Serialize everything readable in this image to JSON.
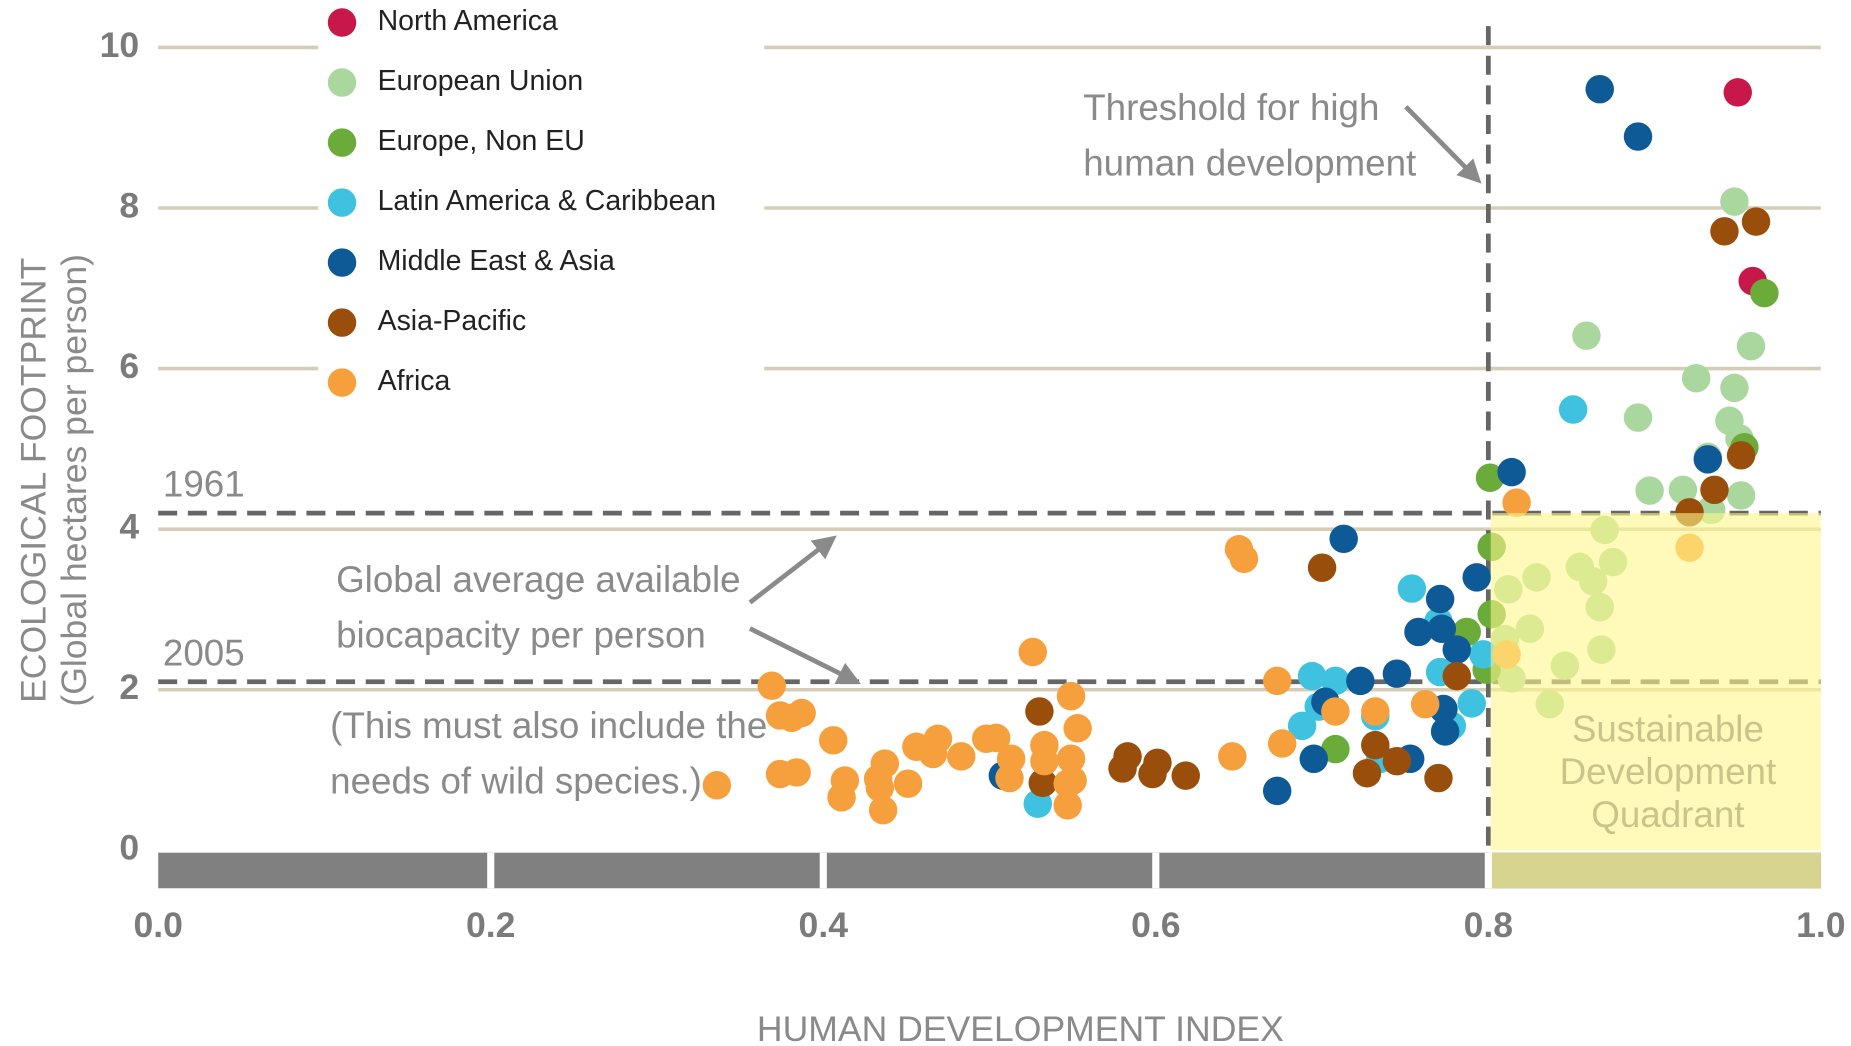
{
  "chart_data": {
    "type": "scatter",
    "x_label": "HUMAN DEVELOPMENT INDEX",
    "y_label": [
      "ECOLOGICAL FOOTPRINT",
      "(Global hectares per person)"
    ],
    "xlim": [
      0,
      1
    ],
    "ylim": [
      0,
      10
    ],
    "xticks": [
      {
        "value": 0,
        "label": "0.0"
      },
      0.2,
      0.4,
      0.6,
      0.8,
      {
        "value": 1,
        "label": "1.0"
      }
    ],
    "yticks": [
      0,
      2,
      4,
      6,
      8,
      10
    ],
    "grid": true,
    "legend": "top-left",
    "reference_lines": [
      {
        "label": "1961",
        "value": 4.2
      },
      {
        "label": "2005",
        "value": 2.1
      }
    ],
    "reference_note": [
      "Global average available",
      "biocapacity per person",
      "(This must also include the",
      "needs of wild species.)"
    ],
    "threshold": {
      "value": 0.8,
      "label": [
        "Threshold for high",
        "human development"
      ]
    },
    "quadrant_label": [
      "Sustainable",
      "Development",
      "Quadrant"
    ],
    "series": [
      {
        "name": "North America",
        "color": "#c8184a",
        "x": [
          0.95,
          0.959
        ],
        "values": [
          9.44,
          7.09
        ]
      },
      {
        "name": "European Union",
        "color": "#a9d79e",
        "x": [
          0.948,
          0.859,
          0.958,
          0.925,
          0.948,
          0.89,
          0.945,
          0.951,
          0.897,
          0.917,
          0.952,
          0.934,
          0.87,
          0.875,
          0.855,
          0.829,
          0.812,
          0.863,
          0.867,
          0.825,
          0.81,
          0.868,
          0.846,
          0.814,
          0.837,
          0.932
        ],
        "values": [
          8.08,
          6.41,
          6.28,
          5.88,
          5.76,
          5.39,
          5.35,
          5.13,
          4.48,
          4.49,
          4.42,
          4.24,
          3.99,
          3.59,
          3.53,
          3.4,
          3.25,
          3.35,
          3.03,
          2.76,
          2.63,
          2.5,
          2.3,
          2.14,
          1.82,
          4.9
        ]
      },
      {
        "name": "Europe, Non EU",
        "color": "#6aab3a",
        "x": [
          0.966,
          0.954,
          0.801,
          0.802,
          0.802,
          0.787,
          0.799,
          0.708
        ],
        "values": [
          6.94,
          5.02,
          4.64,
          3.78,
          2.94,
          2.72,
          2.25,
          1.26
        ]
      },
      {
        "name": "Latin America & Caribbean",
        "color": "#3fc2e0",
        "x": [
          0.851,
          0.754,
          0.77,
          0.797,
          0.771,
          0.79,
          0.694,
          0.708,
          0.688,
          0.698,
          0.732,
          0.735,
          0.529,
          0.778
        ],
        "values": [
          5.49,
          3.26,
          2.85,
          2.44,
          2.22,
          1.83,
          2.17,
          2.11,
          1.55,
          1.79,
          1.67,
          1.14,
          0.58,
          1.55
        ]
      },
      {
        "name": "Middle East & Asia",
        "color": "#0d5a96",
        "x": [
          0.867,
          0.89,
          0.932,
          0.814,
          0.713,
          0.793,
          0.771,
          0.758,
          0.772,
          0.781,
          0.745,
          0.723,
          0.702,
          0.773,
          0.774,
          0.753,
          0.695,
          0.673,
          0.508
        ],
        "values": [
          9.48,
          8.89,
          4.87,
          4.71,
          3.88,
          3.4,
          3.13,
          2.72,
          2.76,
          2.5,
          2.2,
          2.11,
          1.85,
          1.76,
          1.48,
          1.14,
          1.14,
          0.74,
          0.93
        ]
      },
      {
        "name": "Asia-Pacific",
        "color": "#9a4e0c",
        "x": [
          0.961,
          0.942,
          0.952,
          0.936,
          0.921,
          0.7,
          0.781,
          0.732,
          0.727,
          0.745,
          0.77,
          0.53,
          0.532,
          0.58,
          0.583,
          0.601,
          0.598,
          0.618
        ],
        "values": [
          7.83,
          7.71,
          4.92,
          4.49,
          4.21,
          3.52,
          2.17,
          1.31,
          0.96,
          1.11,
          0.9,
          1.73,
          0.84,
          1.02,
          1.17,
          1.09,
          0.95,
          0.93
        ]
      },
      {
        "name": "Africa",
        "color": "#f5a03c",
        "x": [
          0.817,
          0.921,
          0.65,
          0.653,
          0.526,
          0.673,
          0.732,
          0.708,
          0.762,
          0.676,
          0.646,
          0.369,
          0.374,
          0.387,
          0.381,
          0.406,
          0.336,
          0.374,
          0.384,
          0.413,
          0.411,
          0.437,
          0.433,
          0.434,
          0.436,
          0.451,
          0.456,
          0.469,
          0.466,
          0.483,
          0.498,
          0.504,
          0.513,
          0.512,
          0.533,
          0.533,
          0.549,
          0.549,
          0.553,
          0.547,
          0.547,
          0.55,
          0.811
        ],
        "values": [
          4.33,
          3.77,
          3.75,
          3.63,
          2.47,
          2.11,
          1.73,
          1.73,
          1.82,
          1.33,
          1.17,
          2.05,
          1.68,
          1.71,
          1.65,
          1.37,
          0.81,
          0.95,
          0.97,
          0.87,
          0.66,
          1.08,
          0.89,
          0.78,
          0.5,
          0.83,
          1.29,
          1.39,
          1.2,
          1.17,
          1.39,
          1.4,
          1.14,
          0.9,
          1.31,
          1.11,
          1.14,
          1.92,
          1.52,
          0.83,
          0.56,
          0.87,
          2.44
        ]
      }
    ]
  }
}
